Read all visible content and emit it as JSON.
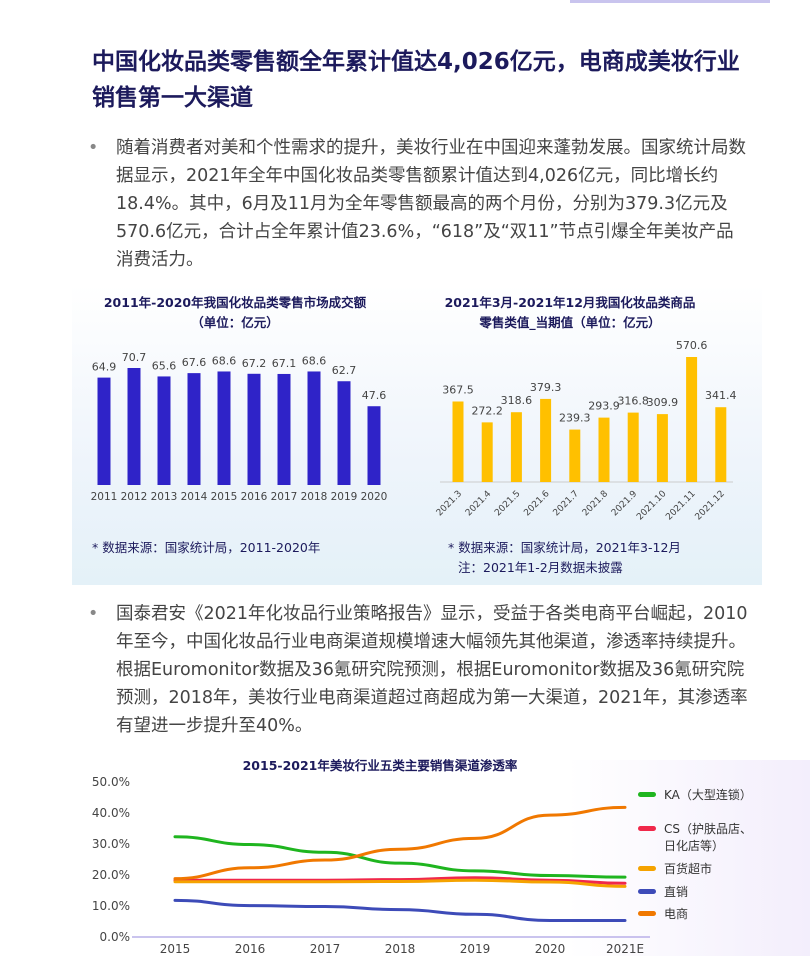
{
  "title": "中国化妆品类零售额全年累计值达4,026亿元，电商成美妆行业销售第一大渠道",
  "paragraphs": [
    "随着消费者对美和个性需求的提升，美妆行业在中国迎来蓬勃发展。国家统计局数据显示，2021年全年中国化妆品类零售额累计值达到4,026亿元，同比增长约18.4%。其中，6月及11月为全年零售额最高的两个月份，分别为379.3亿元及570.6亿元，合计占全年累计值23.6%，“618”及“双11”节点引爆全年美妆产品消费活力。",
    "国泰君安《2021年化妆品行业策略报告》显示，受益于各类电商平台崛起，2010年至今，中国化妆品行业电商渠道规模增速大幅领先其他渠道，渗透率持续提升。根据Euromonitor数据及36氪研究院预测，根据Euromonitor数据及36氪研究院预测，2018年，美妆行业电商渠道超过商超成为第一大渠道，2021年，其渗透率有望进一步提升至40%。"
  ],
  "bullet_symbol": "•",
  "chart_data": [
    {
      "type": "bar",
      "title": "2011年-2020年我国化妆品类零售市场成交额\n（单位：亿元）",
      "title_lines": [
        "2011年-2020年我国化妆品类零售市场成交额",
        "（单位：亿元）"
      ],
      "categories": [
        "2011",
        "2012",
        "2013",
        "2014",
        "2015",
        "2016",
        "2017",
        "2018",
        "2019",
        "2020"
      ],
      "values": [
        64.9,
        70.7,
        65.6,
        67.6,
        68.6,
        67.2,
        67.1,
        68.6,
        62.7,
        47.6
      ],
      "labels": [
        "64.9",
        "70.7",
        "65.6",
        "67.6",
        "68.6",
        "67.2",
        "67.1",
        "68.6",
        "62.7",
        "47.6"
      ],
      "color": "#2f23c8",
      "notes": [
        "* 数据来源：国家统计局，2011-2020年"
      ]
    },
    {
      "type": "bar",
      "title_lines": [
        "2021年3月-2021年12月我国化妆品类商品",
        "零售类值_当期值（单位：亿元）"
      ],
      "categories": [
        "2021.3",
        "2021.4",
        "2021.5",
        "2021.6",
        "2021.7",
        "2021.8",
        "2021.9",
        "2021.10",
        "2021.11",
        "2021.12"
      ],
      "values": [
        367.5,
        272.2,
        318.6,
        379.3,
        239.3,
        293.9,
        316.8,
        309.9,
        570.6,
        341.4
      ],
      "labels": [
        "367.5",
        "272.2",
        "318.6",
        "379.3",
        "239.3",
        "293.9",
        "316.8",
        "309.9",
        "570.6",
        "341.4"
      ],
      "color": "#ffc000",
      "notes": [
        "* 数据来源：国家统计局，2021年3-12月",
        "注：2021年1-2月数据未披露"
      ]
    },
    {
      "type": "line",
      "title": "2015-2021年美妆行业五类主要销售渠道渗透率",
      "x": [
        "2015",
        "2016",
        "2017",
        "2018",
        "2019",
        "2020",
        "2021E"
      ],
      "ylim": [
        0,
        50
      ],
      "yticks": [
        "0.0%",
        "10.0%",
        "20.0%",
        "30.0%",
        "40.0%",
        "50.0%"
      ],
      "legend_position": "right",
      "series": [
        {
          "name": "KA（大型连锁）",
          "color": "#1fb51f",
          "values": [
            32,
            29.5,
            27,
            23.5,
            21,
            19.5,
            19
          ]
        },
        {
          "name": "CS（护肤品店、日化店等）",
          "name_lines": [
            "CS（护肤品店、",
            "日化店等）"
          ],
          "color": "#f0284a",
          "values": [
            18,
            18,
            18,
            18.2,
            18.8,
            18,
            17
          ]
        },
        {
          "name": "百货超市",
          "color": "#f5a300",
          "values": [
            17.5,
            17.5,
            17.5,
            17.6,
            18,
            17.4,
            16
          ]
        },
        {
          "name": "直销",
          "color": "#3d4bb8",
          "values": [
            11.5,
            9.8,
            9.5,
            8.5,
            7,
            5,
            5
          ]
        },
        {
          "name": "电商",
          "color": "#f07800",
          "values": [
            18.5,
            22,
            24.5,
            28,
            31.5,
            39,
            41.5
          ]
        }
      ]
    }
  ]
}
